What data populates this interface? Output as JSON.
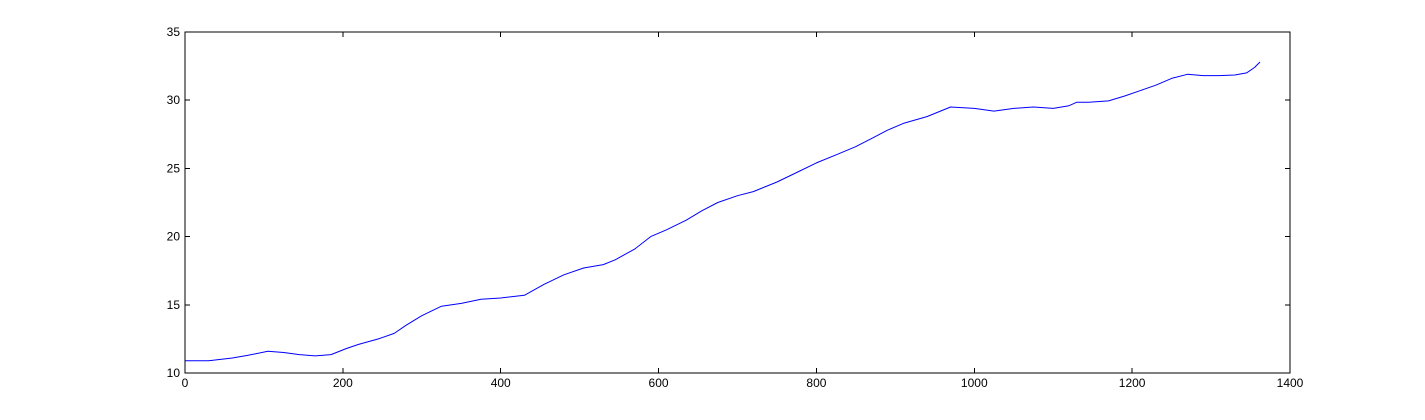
{
  "chart_data": {
    "type": "line",
    "title": "",
    "xlabel": "",
    "ylabel": "",
    "xlim": [
      0,
      1400
    ],
    "ylim": [
      10,
      35
    ],
    "xticks": [
      0,
      200,
      400,
      600,
      800,
      1000,
      1200,
      1400
    ],
    "yticks": [
      10,
      15,
      20,
      25,
      30,
      35
    ],
    "xtick_labels": [
      "0",
      "200",
      "400",
      "600",
      "800",
      "1000",
      "1200",
      "1400"
    ],
    "ytick_labels": [
      "10",
      "15",
      "20",
      "25",
      "30",
      "35"
    ],
    "grid": false,
    "legend": "none",
    "series": [
      {
        "color": "#0000ff",
        "x": [
          0,
          30,
          60,
          80,
          105,
          125,
          145,
          165,
          185,
          205,
          220,
          245,
          265,
          280,
          300,
          325,
          350,
          375,
          400,
          430,
          455,
          480,
          505,
          530,
          545,
          570,
          590,
          610,
          635,
          655,
          675,
          700,
          720,
          750,
          775,
          800,
          825,
          850,
          870,
          890,
          910,
          940,
          970,
          1000,
          1025,
          1050,
          1075,
          1100,
          1120,
          1130,
          1145,
          1170,
          1190,
          1210,
          1230,
          1250,
          1270,
          1290,
          1310,
          1330,
          1345,
          1355,
          1362
        ],
        "y": [
          10.9,
          10.9,
          11.1,
          11.3,
          11.6,
          11.5,
          11.35,
          11.25,
          11.35,
          11.8,
          12.1,
          12.5,
          12.9,
          13.5,
          14.2,
          14.9,
          15.1,
          15.4,
          15.5,
          15.7,
          16.5,
          17.2,
          17.7,
          17.95,
          18.3,
          19.1,
          20.0,
          20.5,
          21.2,
          21.9,
          22.5,
          23.0,
          23.3,
          24.0,
          24.7,
          25.4,
          26.0,
          26.6,
          27.2,
          27.8,
          28.3,
          28.8,
          29.5,
          29.4,
          29.2,
          29.4,
          29.5,
          29.4,
          29.6,
          29.85,
          29.85,
          29.95,
          30.3,
          30.7,
          31.1,
          31.6,
          31.9,
          31.8,
          31.8,
          31.85,
          32.0,
          32.4,
          32.8
        ]
      }
    ]
  }
}
